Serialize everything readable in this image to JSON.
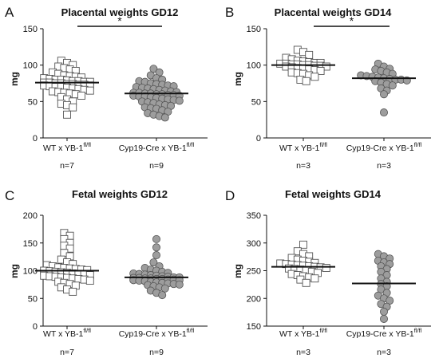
{
  "chart_data": [
    {
      "type": "scatter",
      "letter": "A",
      "title": "Placental weights GD12",
      "ylabel": "mg",
      "ylim": [
        0,
        150
      ],
      "yticks": [
        0,
        50,
        100,
        150
      ],
      "categories": [
        {
          "label": "WT x YB-1",
          "sup": "fl/fl",
          "n": "n=7"
        },
        {
          "label": "Cyp19-Cre x YB-1",
          "sup": "fl/fl",
          "n": "n=9"
        }
      ],
      "significance": "*",
      "series": [
        {
          "marker": "open-square",
          "mean": 76,
          "values": [
            106,
            103,
            100,
            98,
            96,
            94,
            92,
            90,
            88,
            86,
            85,
            84,
            83,
            82,
            81,
            80,
            80,
            79,
            78,
            78,
            77,
            77,
            76,
            76,
            75,
            75,
            74,
            74,
            73,
            73,
            72,
            72,
            71,
            70,
            70,
            69,
            68,
            67,
            66,
            65,
            64,
            63,
            62,
            61,
            60,
            58,
            56,
            53,
            50,
            47,
            45,
            42,
            32
          ]
        },
        {
          "marker": "filled-circle",
          "mean": 61,
          "values": [
            95,
            90,
            86,
            82,
            80,
            78,
            77,
            75,
            74,
            73,
            72,
            71,
            70,
            69,
            68,
            67,
            66,
            65,
            64,
            63,
            62,
            62,
            61,
            61,
            60,
            60,
            59,
            59,
            58,
            58,
            57,
            57,
            56,
            55,
            54,
            53,
            52,
            51,
            50,
            49,
            48,
            46,
            45,
            44,
            42,
            41,
            40,
            38,
            36,
            34,
            32,
            30,
            28
          ]
        }
      ]
    },
    {
      "type": "scatter",
      "letter": "B",
      "title": "Placental weights GD14",
      "ylabel": "mg",
      "ylim": [
        0,
        150
      ],
      "yticks": [
        0,
        50,
        100,
        150
      ],
      "categories": [
        {
          "label": "WT x YB-1",
          "sup": "fl/fl",
          "n": "n=3"
        },
        {
          "label": "Cyp19-Cre x YB-1",
          "sup": "fl/fl",
          "n": "n=3"
        }
      ],
      "significance": "*",
      "series": [
        {
          "marker": "open-square",
          "mean": 100,
          "values": [
            121,
            118,
            114,
            110,
            108,
            106,
            105,
            104,
            103,
            103,
            102,
            102,
            101,
            101,
            100,
            100,
            99,
            99,
            98,
            98,
            97,
            96,
            95,
            94,
            93,
            92,
            90,
            89,
            88,
            86,
            84,
            80,
            78
          ]
        },
        {
          "marker": "filled-circle",
          "mean": 82,
          "values": [
            102,
            98,
            95,
            94,
            92,
            90,
            88,
            86,
            85,
            84,
            83,
            82,
            81,
            80,
            80,
            79,
            78,
            76,
            74,
            72,
            68,
            65,
            60,
            35
          ]
        }
      ]
    },
    {
      "type": "scatter",
      "letter": "C",
      "title": "Fetal weights GD12",
      "ylabel": "mg",
      "ylim": [
        0,
        200
      ],
      "yticks": [
        0,
        50,
        100,
        150,
        200
      ],
      "categories": [
        {
          "label": "WT x YB-1",
          "sup": "fl/fl",
          "n": "n=7"
        },
        {
          "label": "Cyp19-Cre x YB-1",
          "sup": "fl/fl",
          "n": "n=9"
        }
      ],
      "significance": "",
      "series": [
        {
          "marker": "open-square",
          "mean": 100,
          "values": [
            168,
            163,
            157,
            150,
            145,
            140,
            132,
            126,
            120,
            115,
            112,
            110,
            108,
            106,
            105,
            104,
            103,
            102,
            101,
            100,
            99,
            98,
            97,
            96,
            95,
            94,
            93,
            92,
            91,
            90,
            89,
            88,
            87,
            86,
            85,
            84,
            82,
            80,
            78,
            76,
            73,
            70,
            66,
            62
          ]
        },
        {
          "marker": "filled-circle",
          "mean": 88,
          "values": [
            157,
            142,
            128,
            115,
            108,
            105,
            102,
            100,
            98,
            96,
            95,
            94,
            93,
            92,
            91,
            90,
            89,
            88,
            88,
            87,
            87,
            86,
            86,
            85,
            85,
            84,
            84,
            83,
            83,
            82,
            81,
            80,
            79,
            78,
            77,
            76,
            75,
            74,
            72,
            70,
            68,
            64,
            60,
            56
          ]
        }
      ]
    },
    {
      "type": "scatter",
      "letter": "D",
      "title": "Fetal weights GD14",
      "ylabel": "mg",
      "ylim": [
        150,
        350
      ],
      "yticks": [
        150,
        200,
        250,
        300,
        350
      ],
      "categories": [
        {
          "label": "WT x YB-1",
          "sup": "fl/fl",
          "n": "n=3"
        },
        {
          "label": "Cyp19-Cre x YB-1",
          "sup": "fl/fl",
          "n": "n=3"
        }
      ],
      "significance": "",
      "series": [
        {
          "marker": "open-square",
          "mean": 257,
          "values": [
            297,
            285,
            280,
            276,
            273,
            270,
            268,
            266,
            264,
            263,
            262,
            261,
            260,
            259,
            258,
            257,
            256,
            255,
            254,
            253,
            252,
            250,
            248,
            246,
            244,
            242,
            240,
            238,
            236,
            234,
            228
          ]
        },
        {
          "marker": "filled-circle",
          "mean": 227,
          "values": [
            280,
            276,
            272,
            268,
            265,
            262,
            258,
            253,
            248,
            242,
            236,
            230,
            226,
            222,
            216,
            210,
            205,
            200,
            196,
            190,
            185,
            176,
            163
          ]
        }
      ]
    }
  ]
}
